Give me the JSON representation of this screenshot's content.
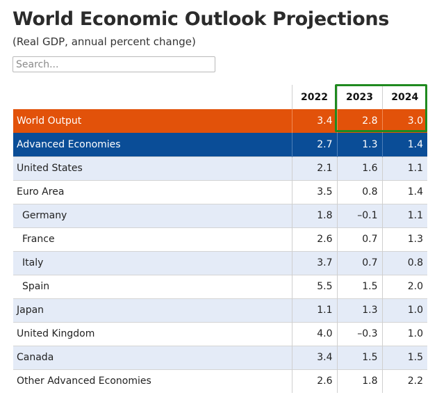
{
  "header": {
    "title": "World Economic Outlook Projections",
    "subtitle": "(Real GDP, annual percent change)"
  },
  "search": {
    "placeholder": "Search..."
  },
  "table": {
    "columns": [
      "2022",
      "2023",
      "2024"
    ],
    "rows": [
      {
        "name": "World Output",
        "values": [
          "3.4",
          "2.8",
          "3.0"
        ]
      },
      {
        "name": "Advanced Economies",
        "values": [
          "2.7",
          "1.3",
          "1.4"
        ]
      },
      {
        "name": "United States",
        "values": [
          "2.1",
          "1.6",
          "1.1"
        ]
      },
      {
        "name": "Euro Area",
        "values": [
          "3.5",
          "0.8",
          "1.4"
        ]
      },
      {
        "name": "Germany",
        "values": [
          "1.8",
          "–0.1",
          "1.1"
        ]
      },
      {
        "name": "France",
        "values": [
          "2.6",
          "0.7",
          "1.3"
        ]
      },
      {
        "name": "Italy",
        "values": [
          "3.7",
          "0.7",
          "0.8"
        ]
      },
      {
        "name": "Spain",
        "values": [
          "5.5",
          "1.5",
          "2.0"
        ]
      },
      {
        "name": "Japan",
        "values": [
          "1.1",
          "1.3",
          "1.0"
        ]
      },
      {
        "name": "United Kingdom",
        "values": [
          "4.0",
          "–0.3",
          "1.0"
        ]
      },
      {
        "name": "Canada",
        "values": [
          "3.4",
          "1.5",
          "1.5"
        ]
      },
      {
        "name": "Other Advanced Economies",
        "values": [
          "2.6",
          "1.8",
          "2.2"
        ]
      }
    ]
  },
  "colors": {
    "world_row": "#e2520a",
    "advanced_row": "#0a4d97",
    "shaded_row": "#e4ebf7",
    "highlight_box": "#1f8a1f"
  }
}
